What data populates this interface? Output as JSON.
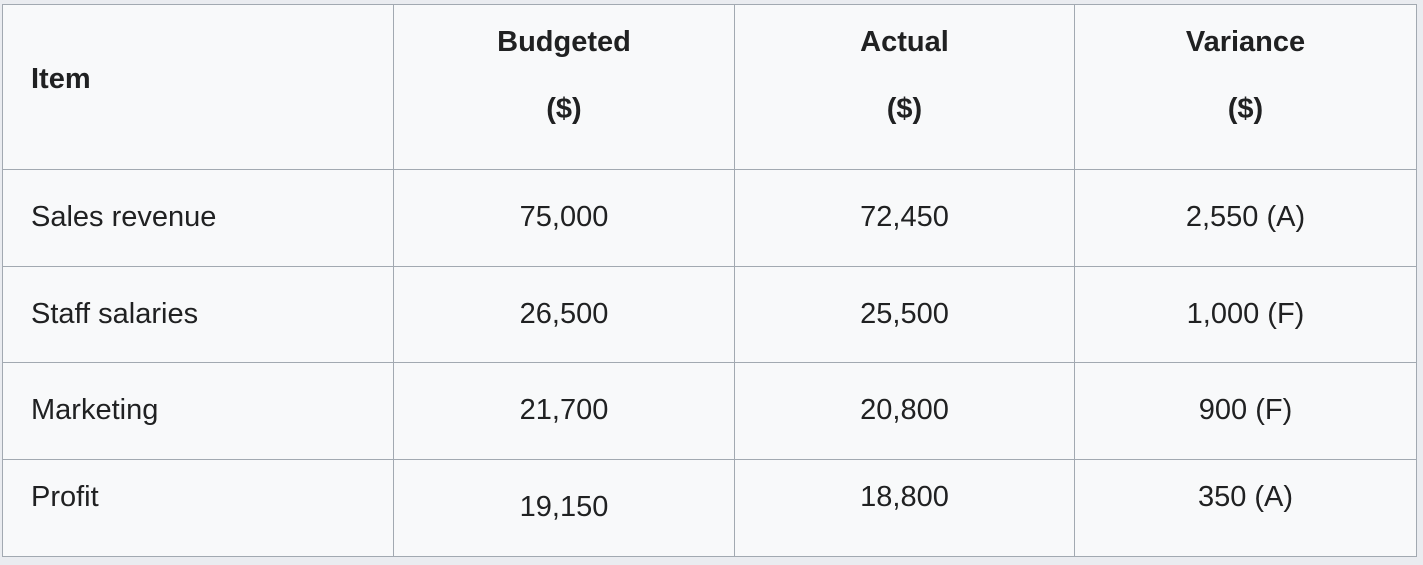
{
  "table": {
    "headers": {
      "item": "Item",
      "budgeted": {
        "line1": "Budgeted",
        "line2": "($)"
      },
      "actual": {
        "line1": "Actual",
        "line2": "($)"
      },
      "variance": {
        "line1": "Variance",
        "line2": "($)"
      }
    },
    "rows": [
      {
        "item": "Sales revenue",
        "budgeted": "75,000",
        "actual": "72,450",
        "variance": "2,550 (A)"
      },
      {
        "item": "Staff salaries",
        "budgeted": "26,500",
        "actual": "25,500",
        "variance": "1,000 (F)"
      },
      {
        "item": "Marketing",
        "budgeted": "21,700",
        "actual": "20,800",
        "variance": "900 (F)"
      },
      {
        "item": "Profit",
        "budgeted": "19,150",
        "actual": "18,800",
        "variance": "350 (A)"
      }
    ]
  }
}
